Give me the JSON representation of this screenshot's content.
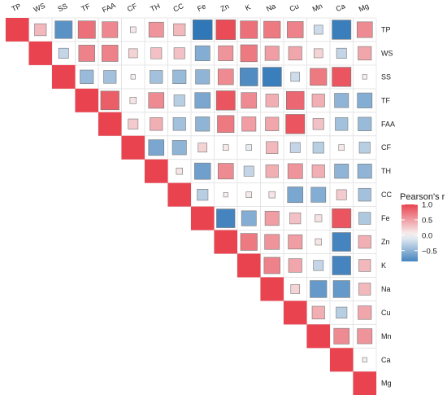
{
  "chart_data": {
    "type": "heatmap",
    "variables": [
      "TP",
      "WS",
      "SS",
      "TF",
      "FAA",
      "CF",
      "TH",
      "CC",
      "Fe",
      "Zn",
      "K",
      "Na",
      "Cu",
      "Mn",
      "Ca",
      "Mg"
    ],
    "matrix": [
      [
        1,
        0.35,
        -0.75,
        0.75,
        0.62,
        0.08,
        0.55,
        0.35,
        -0.95,
        0.95,
        0.75,
        0.7,
        0.65,
        -0.2,
        -0.9,
        0.6
      ],
      [
        null,
        1,
        -0.25,
        0.65,
        0.65,
        0.2,
        0.3,
        0.3,
        -0.55,
        0.55,
        0.7,
        0.5,
        0.45,
        0.2,
        -0.25,
        0.45
      ],
      [
        null,
        null,
        1,
        -0.45,
        -0.4,
        0.05,
        -0.4,
        -0.45,
        -0.5,
        0.6,
        -0.8,
        -0.9,
        -0.2,
        0.7,
        0.9,
        0.05
      ],
      [
        null,
        null,
        null,
        1,
        0.85,
        0.1,
        0.6,
        -0.3,
        -0.6,
        0.9,
        0.6,
        0.4,
        0.8,
        0.4,
        -0.5,
        -0.55
      ],
      [
        null,
        null,
        null,
        null,
        1,
        0.25,
        0.4,
        -0.4,
        -0.5,
        0.7,
        0.5,
        0.45,
        0.9,
        0.3,
        -0.4,
        -0.45
      ],
      [
        null,
        null,
        null,
        null,
        null,
        1,
        -0.6,
        -0.5,
        0.2,
        0.08,
        -0.08,
        0.35,
        -0.25,
        -0.3,
        0.08,
        -0.3
      ],
      [
        null,
        null,
        null,
        null,
        null,
        null,
        1,
        0.1,
        -0.65,
        0.6,
        -0.25,
        0.4,
        0.55,
        0.4,
        -0.5,
        -0.5
      ],
      [
        null,
        null,
        null,
        null,
        null,
        null,
        null,
        1,
        -0.3,
        0.05,
        0.08,
        0.1,
        -0.6,
        -0.55,
        0.25,
        -0.4
      ],
      [
        null,
        null,
        null,
        null,
        null,
        null,
        null,
        null,
        1,
        -0.85,
        -0.55,
        0.5,
        0.3,
        0.12,
        0.9,
        -0.35
      ],
      [
        null,
        null,
        null,
        null,
        null,
        null,
        null,
        null,
        null,
        1,
        0.7,
        0.55,
        0.5,
        0.1,
        -0.85,
        0.4
      ],
      [
        null,
        null,
        null,
        null,
        null,
        null,
        null,
        null,
        null,
        null,
        1,
        0.65,
        0.45,
        -0.25,
        -0.85,
        0.35
      ],
      [
        null,
        null,
        null,
        null,
        null,
        null,
        null,
        null,
        null,
        null,
        null,
        1,
        0.2,
        -0.7,
        -0.7,
        0.35
      ],
      [
        null,
        null,
        null,
        null,
        null,
        null,
        null,
        null,
        null,
        null,
        null,
        null,
        1,
        0.4,
        -0.3,
        0.45
      ],
      [
        null,
        null,
        null,
        null,
        null,
        null,
        null,
        null,
        null,
        null,
        null,
        null,
        null,
        1,
        0.6,
        0.55
      ],
      [
        null,
        null,
        null,
        null,
        null,
        null,
        null,
        null,
        null,
        null,
        null,
        null,
        null,
        null,
        1,
        0.05
      ],
      [
        null,
        null,
        null,
        null,
        null,
        null,
        null,
        null,
        null,
        null,
        null,
        null,
        null,
        null,
        null,
        1
      ]
    ],
    "legend": {
      "title": "Pearson's r",
      "ticks": [
        "1.0",
        "0.5",
        "0.0",
        "−0.5"
      ],
      "tick_values": [
        1.0,
        0.5,
        0.0,
        -0.5
      ],
      "range": [
        -0.85,
        1.0
      ],
      "placement": "right"
    },
    "colors": {
      "positive": "#e8434f",
      "zero": "#f7f7f7",
      "negative": "#2670b5",
      "border": "#777777"
    }
  }
}
